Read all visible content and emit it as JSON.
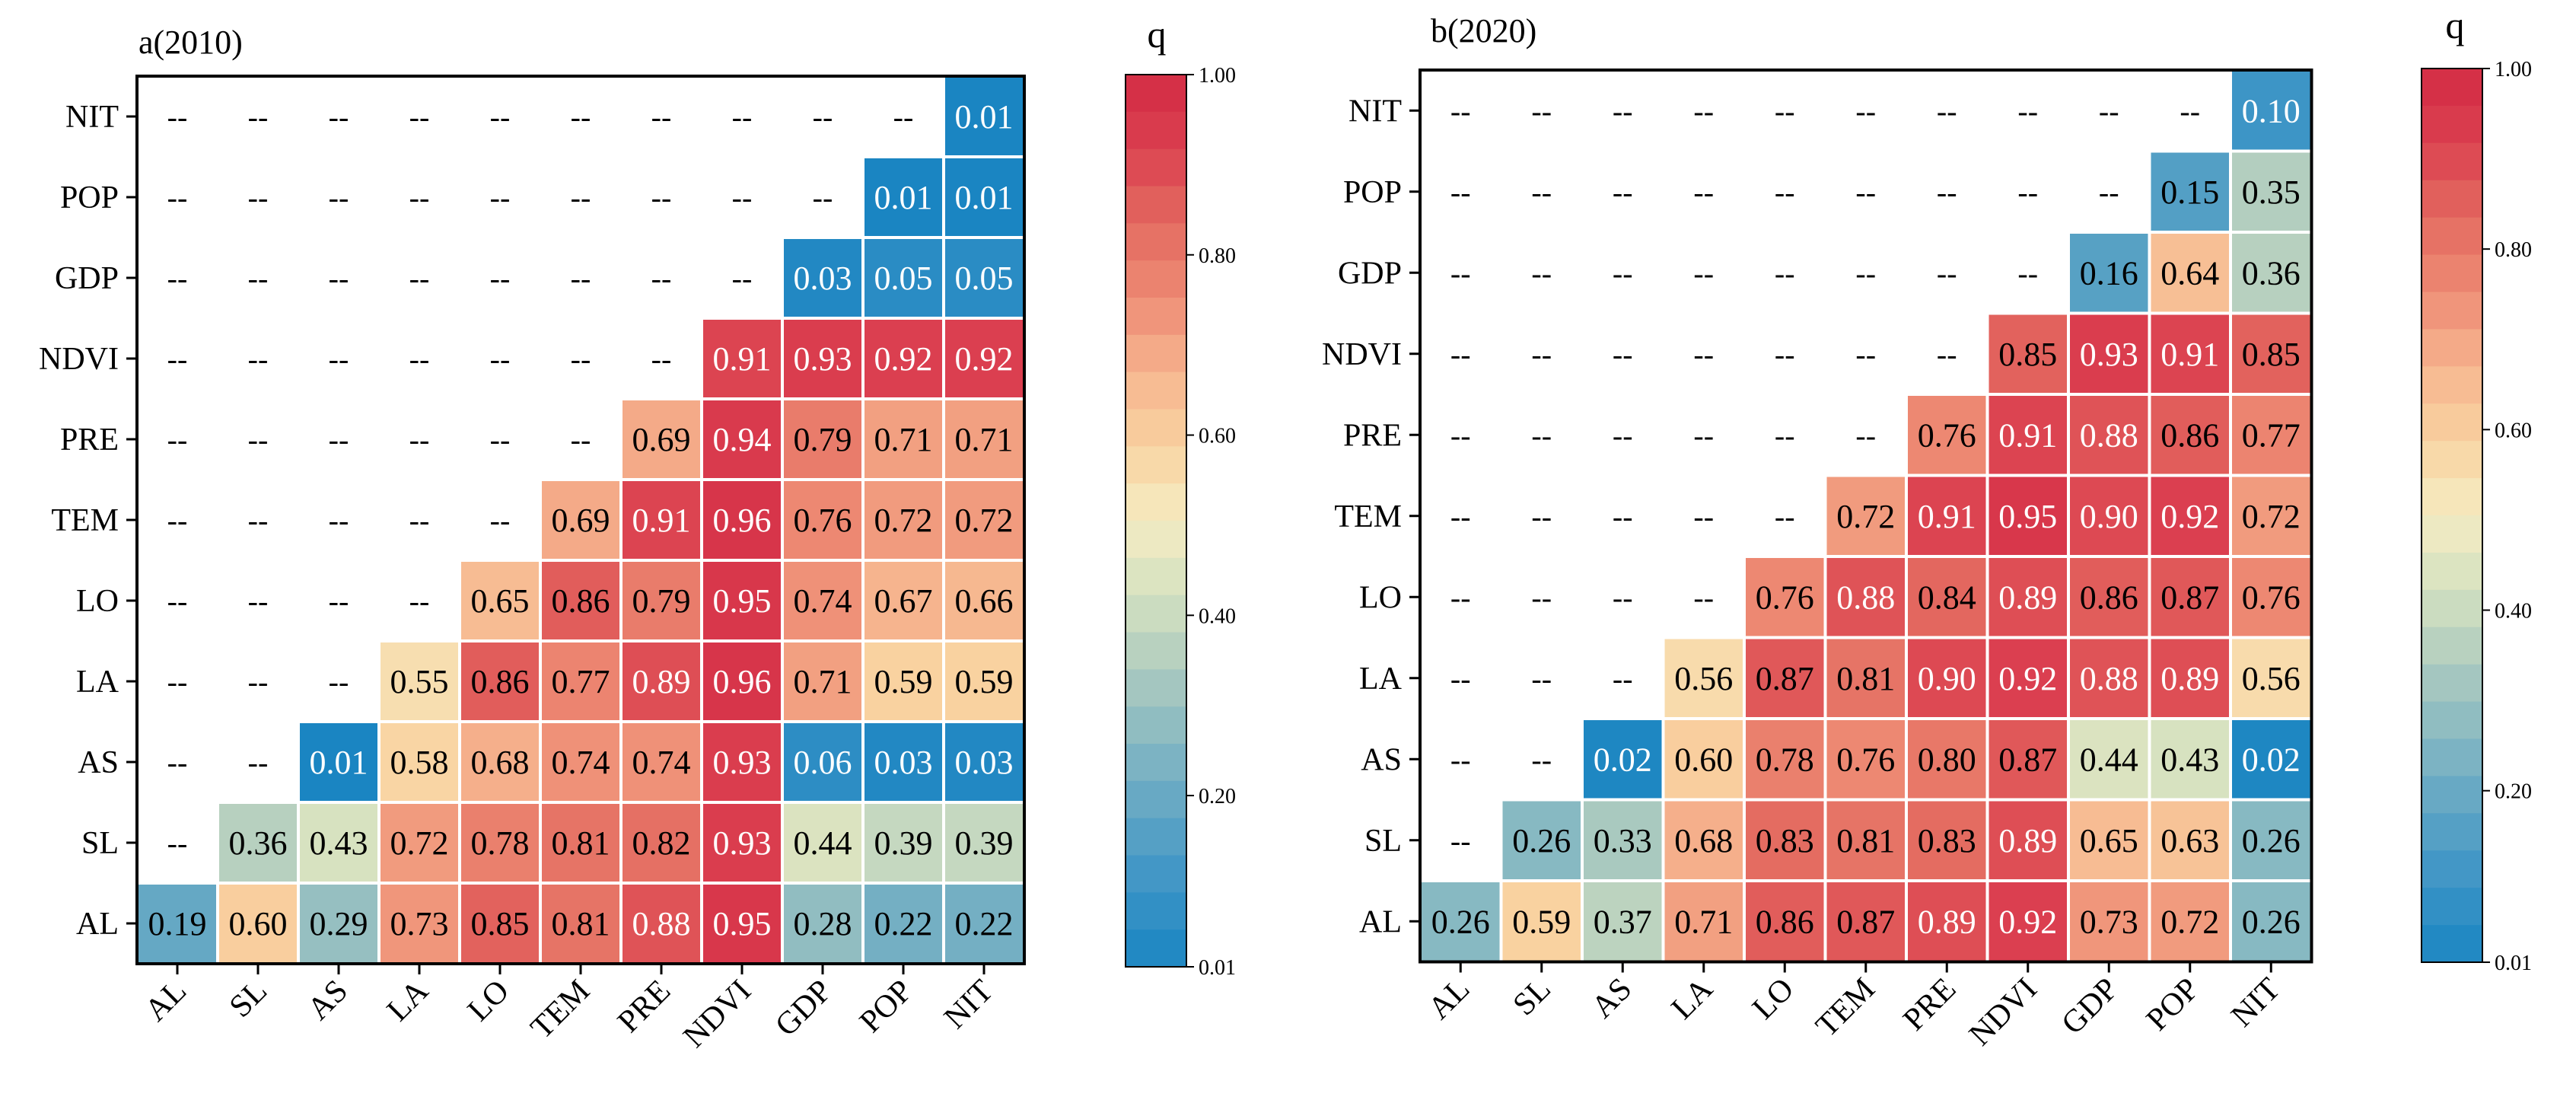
{
  "chart_data": [
    {
      "type": "heatmap",
      "title": "a(2010)",
      "x_categories": [
        "AL",
        "SL",
        "AS",
        "LA",
        "LO",
        "TEM",
        "PRE",
        "NDVI",
        "GDP",
        "POP",
        "NIT"
      ],
      "y_categories": [
        "NIT",
        "POP",
        "GDP",
        "NDVI",
        "PRE",
        "TEM",
        "LO",
        "LA",
        "AS",
        "SL",
        "AL"
      ],
      "empty_label": "--",
      "cells": [
        [
          null,
          null,
          null,
          null,
          null,
          null,
          null,
          null,
          null,
          null,
          0.01
        ],
        [
          null,
          null,
          null,
          null,
          null,
          null,
          null,
          null,
          null,
          0.01,
          0.01
        ],
        [
          null,
          null,
          null,
          null,
          null,
          null,
          null,
          null,
          0.03,
          0.05,
          0.05
        ],
        [
          null,
          null,
          null,
          null,
          null,
          null,
          null,
          0.91,
          0.93,
          0.92,
          0.92
        ],
        [
          null,
          null,
          null,
          null,
          null,
          null,
          0.69,
          0.94,
          0.79,
          0.71,
          0.71
        ],
        [
          null,
          null,
          null,
          null,
          null,
          0.69,
          0.91,
          0.96,
          0.76,
          0.72,
          0.72
        ],
        [
          null,
          null,
          null,
          null,
          0.65,
          0.86,
          0.79,
          0.95,
          0.74,
          0.67,
          0.66
        ],
        [
          null,
          null,
          null,
          0.55,
          0.86,
          0.77,
          0.89,
          0.96,
          0.71,
          0.59,
          0.59
        ],
        [
          null,
          null,
          0.01,
          0.58,
          0.68,
          0.74,
          0.74,
          0.93,
          0.06,
          0.03,
          0.03
        ],
        [
          null,
          0.36,
          0.43,
          0.72,
          0.78,
          0.81,
          0.82,
          0.93,
          0.44,
          0.39,
          0.39
        ],
        [
          0.19,
          0.6,
          0.29,
          0.73,
          0.85,
          0.81,
          0.88,
          0.95,
          0.28,
          0.22,
          0.22
        ]
      ],
      "colorbar": {
        "title": "q",
        "range": [
          0.01,
          1.0
        ],
        "tick_labels": [
          "1.00",
          "0.80",
          "0.60",
          "0.40",
          "0.20",
          "0.01"
        ]
      }
    },
    {
      "type": "heatmap",
      "title": "b(2020)",
      "x_categories": [
        "AL",
        "SL",
        "AS",
        "LA",
        "LO",
        "TEM",
        "PRE",
        "NDVI",
        "GDP",
        "POP",
        "NIT"
      ],
      "y_categories": [
        "NIT",
        "POP",
        "GDP",
        "NDVI",
        "PRE",
        "TEM",
        "LO",
        "LA",
        "AS",
        "SL",
        "AL"
      ],
      "empty_label": "--",
      "cells": [
        [
          null,
          null,
          null,
          null,
          null,
          null,
          null,
          null,
          null,
          null,
          0.1
        ],
        [
          null,
          null,
          null,
          null,
          null,
          null,
          null,
          null,
          null,
          0.15,
          0.35
        ],
        [
          null,
          null,
          null,
          null,
          null,
          null,
          null,
          null,
          0.16,
          0.64,
          0.36
        ],
        [
          null,
          null,
          null,
          null,
          null,
          null,
          null,
          0.85,
          0.93,
          0.91,
          0.85
        ],
        [
          null,
          null,
          null,
          null,
          null,
          null,
          0.76,
          0.91,
          0.88,
          0.86,
          0.77
        ],
        [
          null,
          null,
          null,
          null,
          null,
          0.72,
          0.91,
          0.95,
          0.9,
          0.92,
          0.72
        ],
        [
          null,
          null,
          null,
          null,
          0.76,
          0.88,
          0.84,
          0.89,
          0.86,
          0.87,
          0.76
        ],
        [
          null,
          null,
          null,
          0.56,
          0.87,
          0.81,
          0.9,
          0.92,
          0.88,
          0.89,
          0.56
        ],
        [
          null,
          null,
          0.02,
          0.6,
          0.78,
          0.76,
          0.8,
          0.87,
          0.44,
          0.43,
          0.02
        ],
        [
          null,
          0.26,
          0.33,
          0.68,
          0.83,
          0.81,
          0.83,
          0.89,
          0.65,
          0.63,
          0.26
        ],
        [
          0.26,
          0.59,
          0.37,
          0.71,
          0.86,
          0.87,
          0.89,
          0.92,
          0.73,
          0.72,
          0.26
        ]
      ],
      "colorbar": {
        "title": "q",
        "range": [
          0.01,
          1.0
        ],
        "tick_labels": [
          "1.00",
          "0.80",
          "0.60",
          "0.40",
          "0.20",
          "0.01"
        ]
      }
    }
  ],
  "colors": {
    "scale_stops": [
      "#1a85c2",
      "#3a93c6",
      "#5ea4c4",
      "#86b8c2",
      "#aecbbf",
      "#d4e1c0",
      "#f5ecc2",
      "#f9d3a1",
      "#f6b48e",
      "#ee8b74",
      "#e36a60",
      "#db4050",
      "#d32a44"
    ],
    "cell_border": "#ffffff",
    "axis": "#000000",
    "text_dark": "#000000",
    "text_light": "#ffffff"
  }
}
